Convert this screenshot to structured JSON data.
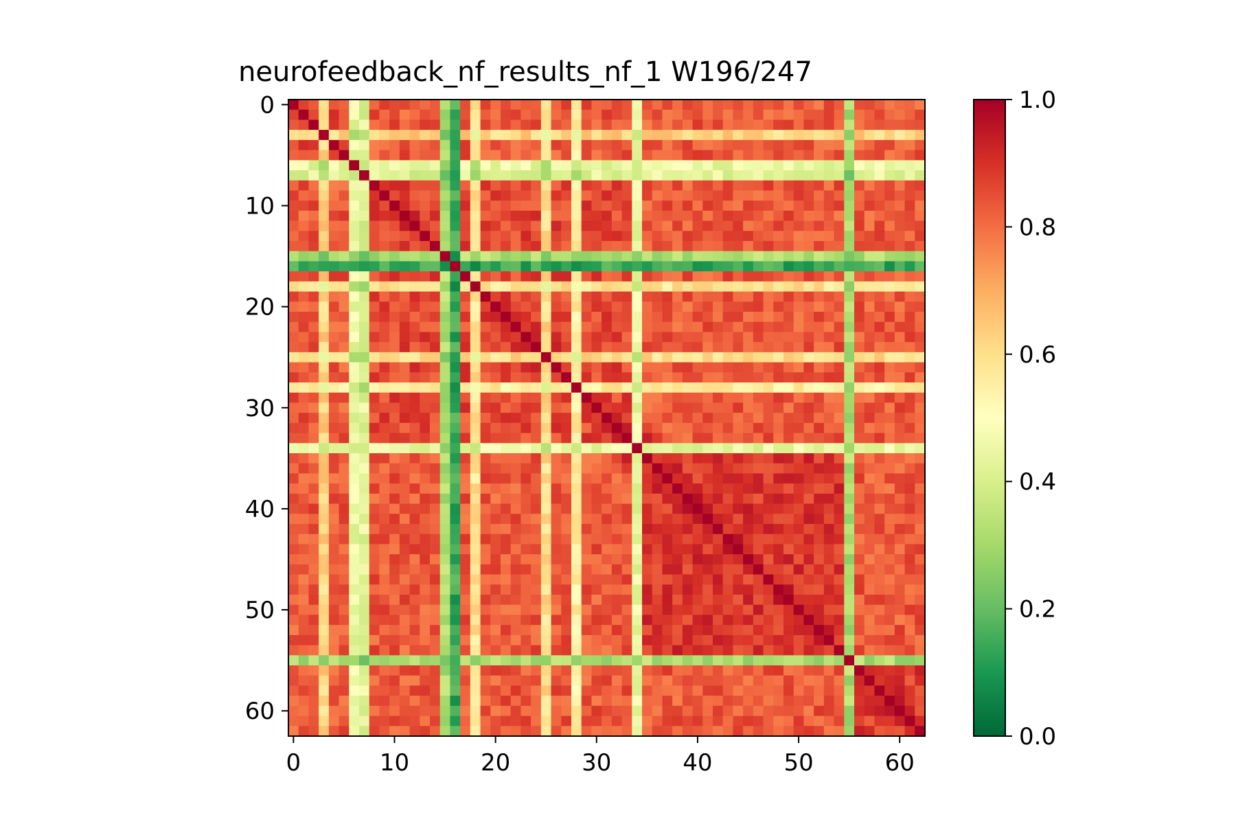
{
  "chart_data": {
    "type": "heatmap",
    "title": "neurofeedback_nf_results_nf_1 W196/247",
    "xlabel": "",
    "ylabel": "",
    "n_rows": 63,
    "n_cols": 63,
    "x_ticks": [
      0,
      10,
      20,
      30,
      40,
      50,
      60
    ],
    "y_ticks": [
      0,
      10,
      20,
      30,
      40,
      50,
      60
    ],
    "xlim": [
      -0.5,
      62.5
    ],
    "ylim": [
      62.5,
      -0.5
    ],
    "colorbar": {
      "min": 0.0,
      "max": 1.0,
      "ticks": [
        0.0,
        0.2,
        0.4,
        0.6,
        0.8,
        1.0
      ],
      "tick_labels": [
        "0.0",
        "0.2",
        "0.4",
        "0.6",
        "0.8",
        "1.0"
      ],
      "colormap": "RdYlGn_r",
      "colors": [
        "#006837",
        "#1a9850",
        "#66bd63",
        "#a6d96a",
        "#d9ef8b",
        "#ffffbf",
        "#fee08b",
        "#fdae61",
        "#f46d43",
        "#d73027",
        "#a50026"
      ]
    },
    "base_value": 0.83,
    "diagonal_value": 1.0,
    "off_diagonal_band_values": [
      {
        "index": 3,
        "value": 0.62
      },
      {
        "index": 6,
        "value": 0.45
      },
      {
        "index": 7,
        "value": 0.42
      },
      {
        "index": 15,
        "value": 0.32
      },
      {
        "index": 16,
        "value": 0.14
      },
      {
        "index": 18,
        "value": 0.58
      },
      {
        "index": 25,
        "value": 0.6
      },
      {
        "index": 28,
        "value": 0.55
      },
      {
        "index": 34,
        "value": 0.45
      },
      {
        "index": 55,
        "value": 0.32
      }
    ],
    "blocks": [
      {
        "rows": [
          8,
          33
        ],
        "cols": [
          8,
          33
        ],
        "value": 0.86
      },
      {
        "rows": [
          35,
          54
        ],
        "cols": [
          35,
          54
        ],
        "value": 0.89
      },
      {
        "rows": [
          56,
          62
        ],
        "cols": [
          56,
          62
        ],
        "value": 0.88
      },
      {
        "rows": [
          0,
          5
        ],
        "cols": [
          0,
          5
        ],
        "value": 0.87
      }
    ]
  }
}
